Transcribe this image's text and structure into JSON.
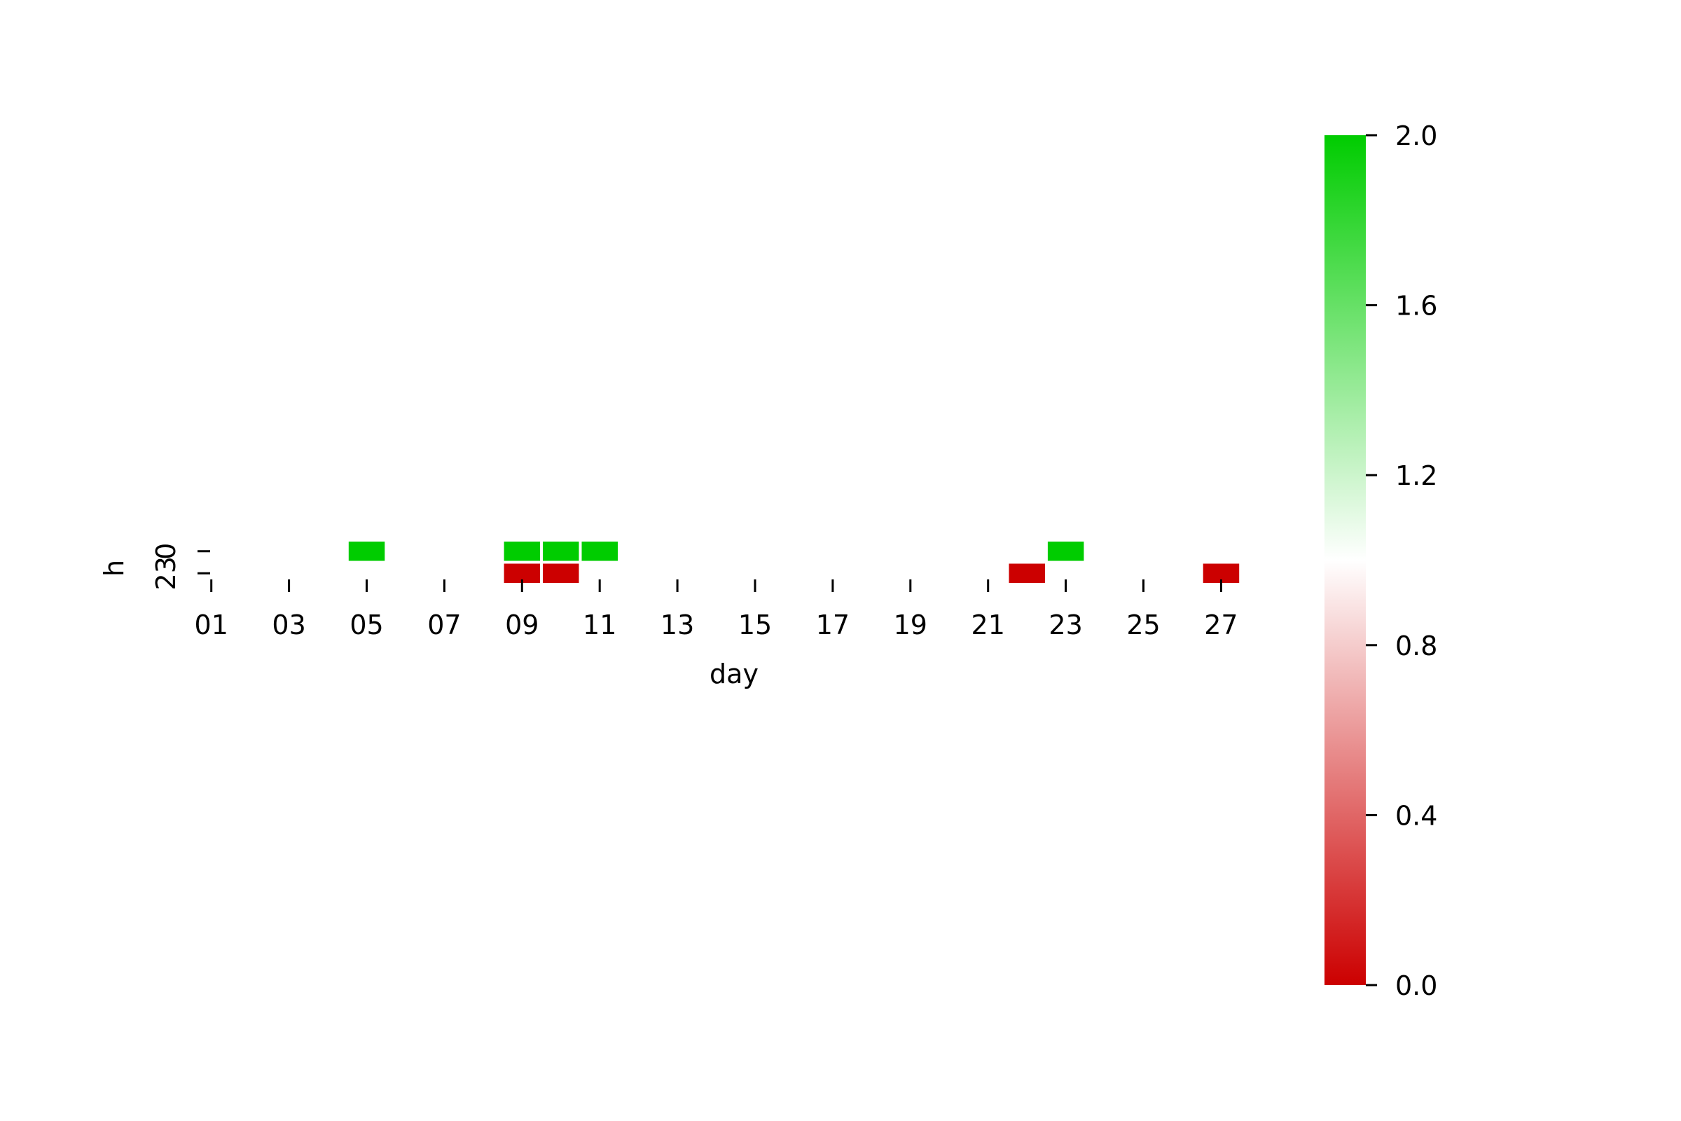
{
  "chart_data": {
    "type": "heatmap",
    "title": "",
    "xlabel": "day",
    "ylabel": "h",
    "x_tick_labels": [
      "01",
      "03",
      "05",
      "07",
      "09",
      "11",
      "13",
      "15",
      "17",
      "19",
      "21",
      "23",
      "25",
      "27"
    ],
    "y_tick_labels": [
      "0",
      "23"
    ],
    "days": [
      "01",
      "02",
      "03",
      "04",
      "05",
      "06",
      "07",
      "08",
      "09",
      "10",
      "11",
      "12",
      "13",
      "14",
      "15",
      "16",
      "17",
      "18",
      "19",
      "20",
      "21",
      "22",
      "23",
      "24",
      "25",
      "26",
      "27"
    ],
    "rows": [
      "0",
      "23"
    ],
    "cells": [
      {
        "day": "05",
        "row": "0",
        "value": 2.0
      },
      {
        "day": "09",
        "row": "0",
        "value": 2.0
      },
      {
        "day": "10",
        "row": "0",
        "value": 2.0
      },
      {
        "day": "11",
        "row": "0",
        "value": 2.0
      },
      {
        "day": "23",
        "row": "0",
        "value": 2.0
      },
      {
        "day": "09",
        "row": "23",
        "value": 0.0
      },
      {
        "day": "10",
        "row": "23",
        "value": 0.0
      },
      {
        "day": "22",
        "row": "23",
        "value": 0.0
      },
      {
        "day": "27",
        "row": "23",
        "value": 0.0
      }
    ],
    "colorbar": {
      "min": 0.0,
      "max": 2.0,
      "center": 1.0,
      "ticks": [
        "0.0",
        "0.4",
        "0.8",
        "1.2",
        "1.6",
        "2.0"
      ],
      "colors": {
        "low": "#cc0000",
        "mid": "#ffffff",
        "high": "#00cc00"
      }
    },
    "grid": false,
    "legend": "colorbar-right"
  }
}
